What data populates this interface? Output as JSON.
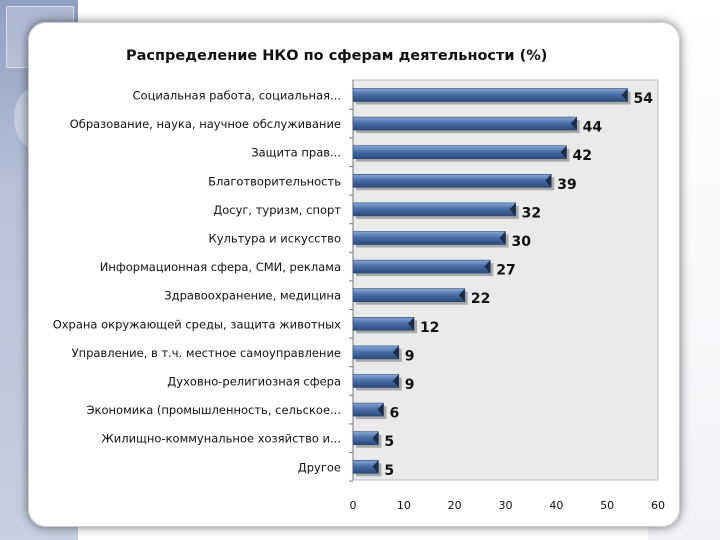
{
  "chart_data": {
    "type": "bar",
    "orientation": "horizontal",
    "title": "Распределение НКО по сферам деятельности (%)",
    "xlabel": "",
    "ylabel": "",
    "xlim": [
      0,
      60
    ],
    "x_ticks": [
      "0",
      "10",
      "20",
      "30",
      "40",
      "50",
      "60"
    ],
    "grid": false,
    "bar_color": "#4a6fa8",
    "plot_bg": "#eaeaea",
    "categories": [
      "Социальная работа, социальная...",
      "Образование, наука, научное обслуживание",
      "Защита прав...",
      "Благотворительность",
      "Досуг, туризм, спорт",
      "Культура и искусство",
      "Информационная сфера, СМИ, реклама",
      "Здравоохранение, медицина",
      "Охрана окружающей среды, защита животных",
      "Управление, в т.ч. местное самоуправление",
      "Духовно-религиозная сфера",
      "Экономика (промышленность, сельское...",
      "Жилищно-коммунальное хозяйство и...",
      "Другое"
    ],
    "values": [
      54,
      44,
      42,
      39,
      32,
      30,
      27,
      22,
      12,
      9,
      9,
      6,
      5,
      5
    ],
    "data_labels": [
      "54",
      "44",
      "42",
      "39",
      "32",
      "30",
      "27",
      "22",
      "12",
      "9",
      "9",
      "6",
      "5",
      "5"
    ]
  }
}
